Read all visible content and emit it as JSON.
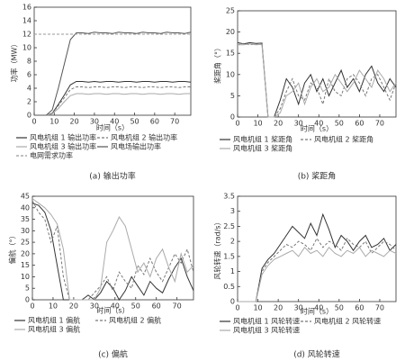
{
  "chart_data": [
    {
      "type": "line",
      "caption": "(a) 输出功率",
      "xlabel": "时间（s）",
      "ylabel": "功率（MW）",
      "x": [
        0,
        3,
        6,
        9,
        12,
        15,
        18,
        21,
        24,
        27,
        30,
        33,
        36,
        39,
        42,
        45,
        48,
        51,
        54,
        57,
        60,
        63,
        66,
        69,
        72,
        75,
        78
      ],
      "xlim": [
        0,
        78
      ],
      "xticks": [
        0,
        10,
        20,
        30,
        40,
        50,
        60,
        70
      ],
      "ylim": [
        0,
        16
      ],
      "yticks": [
        0,
        2,
        4,
        6,
        8,
        10,
        12,
        14,
        16
      ],
      "series": [
        {
          "name": "风电机组 1 输出功率",
          "color": "#333333",
          "dash": false,
          "values": [
            0,
            0,
            0,
            0.3,
            1.6,
            3.0,
            4.5,
            5.0,
            5.0,
            4.9,
            5.0,
            4.9,
            5.0,
            5.0,
            4.9,
            5.0,
            5.0,
            4.9,
            5.0,
            5.0,
            4.9,
            5.0,
            5.0,
            4.9,
            5.0,
            5.0,
            4.9
          ]
        },
        {
          "name": "风电机组 2 输出功率",
          "color": "#777777",
          "dash": true,
          "values": [
            0,
            0,
            0,
            0.3,
            1.4,
            2.6,
            3.8,
            4.2,
            4.2,
            4.1,
            4.2,
            4.2,
            4.1,
            4.2,
            4.2,
            4.1,
            4.2,
            4.2,
            4.1,
            4.2,
            4.2,
            4.1,
            4.2,
            4.2,
            4.1,
            4.2,
            4.2
          ]
        },
        {
          "name": "风电机组 3 输出功率",
          "color": "#aaaaaa",
          "dash": false,
          "values": [
            0,
            0,
            0,
            0.2,
            1.0,
            2.0,
            2.9,
            3.2,
            3.2,
            3.1,
            3.2,
            3.2,
            3.1,
            3.2,
            3.2,
            3.1,
            3.2,
            3.2,
            3.1,
            3.2,
            3.2,
            3.1,
            3.2,
            3.2,
            3.1,
            3.2,
            3.2
          ]
        },
        {
          "name": "风电场输出功率",
          "color": "#555555",
          "dash": false,
          "values": [
            0,
            0,
            0,
            0.8,
            4.0,
            7.6,
            11.2,
            12.2,
            12.2,
            12.1,
            12.3,
            12.2,
            12.2,
            12.1,
            12.3,
            12.2,
            12.2,
            12.1,
            12.3,
            12.2,
            12.2,
            12.1,
            12.3,
            12.2,
            12.2,
            12.1,
            12.3
          ]
        },
        {
          "name": "电网需求功率",
          "color": "#999999",
          "dash": true,
          "values": [
            12,
            12,
            12,
            12,
            12,
            12,
            12,
            12,
            12,
            12,
            12,
            12,
            12,
            12,
            12,
            12,
            12,
            12,
            12,
            12,
            12,
            12,
            12,
            12,
            12,
            12,
            12
          ]
        }
      ]
    },
    {
      "type": "line",
      "caption": "(b) 桨距角",
      "xlabel": "时间（s）",
      "ylabel": "桨距角（°）",
      "x": [
        0,
        3,
        6,
        9,
        12,
        15,
        18,
        21,
        24,
        27,
        30,
        33,
        36,
        39,
        42,
        45,
        48,
        51,
        54,
        57,
        60,
        63,
        66,
        69,
        72,
        75,
        78
      ],
      "xlim": [
        0,
        78
      ],
      "xticks": [
        0,
        10,
        20,
        30,
        40,
        50,
        60,
        70
      ],
      "ylim": [
        0,
        25
      ],
      "yticks": [
        0,
        5,
        10,
        15,
        20,
        25
      ],
      "series": [
        {
          "name": "风电机组 1 桨距角",
          "color": "#333333",
          "dash": false,
          "values": [
            17.5,
            17.2,
            17.5,
            17.3,
            17.4,
            0,
            0,
            4,
            9,
            7,
            3,
            8,
            10,
            6,
            9,
            5,
            8,
            11,
            7,
            9,
            6,
            10,
            12,
            8,
            6,
            9,
            7
          ]
        },
        {
          "name": "风电机组 2 桨距角",
          "color": "#777777",
          "dash": true,
          "values": [
            17,
            17.3,
            17,
            17.2,
            17,
            0,
            0,
            2,
            6,
            9,
            5,
            4,
            8,
            7,
            3,
            9,
            6,
            5,
            9,
            10,
            8,
            5,
            9,
            10,
            7,
            4,
            8
          ]
        },
        {
          "name": "风电机组 3 桨距角",
          "color": "#aaaaaa",
          "dash": false,
          "values": [
            17,
            17,
            17.2,
            17,
            17.1,
            0,
            0,
            1,
            5,
            6,
            8,
            3,
            7,
            9,
            6,
            7,
            10,
            8,
            6,
            8,
            11,
            9,
            7,
            11,
            9,
            6,
            8
          ]
        }
      ]
    },
    {
      "type": "line",
      "caption": "(c) 偏航",
      "xlabel": "时间（s）",
      "ylabel": "偏航（°）",
      "x": [
        0,
        3,
        6,
        9,
        12,
        15,
        18,
        21,
        24,
        27,
        30,
        33,
        36,
        39,
        42,
        45,
        48,
        51,
        54,
        57,
        60,
        63,
        66,
        69,
        72,
        75,
        78
      ],
      "xlim": [
        0,
        78
      ],
      "xticks": [
        0,
        10,
        20,
        30,
        40,
        50,
        60,
        70
      ],
      "ylim": [
        0,
        45
      ],
      "yticks": [
        0,
        5,
        10,
        15,
        20,
        25,
        30,
        35,
        40,
        45
      ],
      "series": [
        {
          "name": "风电机组 1 偏航",
          "color": "#333333",
          "dash": false,
          "values": [
            42,
            41,
            38,
            30,
            15,
            0,
            0,
            0,
            0,
            2,
            0,
            3,
            8,
            5,
            0,
            4,
            10,
            6,
            2,
            8,
            5,
            3,
            9,
            14,
            18,
            10,
            4
          ]
        },
        {
          "name": "风电机组 2 偏航",
          "color": "#777777",
          "dash": true,
          "values": [
            43,
            38,
            35,
            25,
            32,
            10,
            0,
            0,
            0,
            0,
            3,
            6,
            10,
            4,
            12,
            8,
            5,
            15,
            11,
            18,
            12,
            8,
            14,
            20,
            16,
            22,
            12
          ]
        },
        {
          "name": "风电机组 3 偏航",
          "color": "#aaaaaa",
          "dash": false,
          "values": [
            44,
            42,
            40,
            37,
            33,
            22,
            0,
            0,
            0,
            0,
            0,
            5,
            25,
            30,
            36,
            32,
            22,
            12,
            16,
            10,
            18,
            22,
            14,
            8,
            20,
            12,
            15
          ]
        }
      ]
    },
    {
      "type": "line",
      "caption": "(d) 风轮转速",
      "xlabel": "时间（s）",
      "ylabel": "风轮转速（rad/s）",
      "x": [
        0,
        3,
        6,
        9,
        12,
        15,
        18,
        21,
        24,
        27,
        30,
        33,
        36,
        39,
        42,
        45,
        48,
        51,
        54,
        57,
        60,
        63,
        66,
        69,
        72,
        75,
        78
      ],
      "xlim": [
        0,
        78
      ],
      "xticks": [
        0,
        10,
        20,
        30,
        40,
        50,
        60,
        70
      ],
      "ylim": [
        0,
        3.5
      ],
      "yticks": [
        0,
        0.5,
        1,
        1.5,
        2,
        2.5,
        3,
        3.5
      ],
      "series": [
        {
          "name": "风电机组 1 风轮转速",
          "color": "#333333",
          "dash": false,
          "values": [
            0,
            0,
            0,
            0,
            1.1,
            1.4,
            1.6,
            1.9,
            2.2,
            2.5,
            2.3,
            2.1,
            2.6,
            2.2,
            2.9,
            2.4,
            1.8,
            2.2,
            2.0,
            1.7,
            2.0,
            2.2,
            1.8,
            1.9,
            2.1,
            1.7,
            1.9
          ]
        },
        {
          "name": "风电机组 2 风轮转速",
          "color": "#777777",
          "dash": true,
          "values": [
            0,
            0,
            0,
            0,
            1.0,
            1.3,
            1.5,
            1.7,
            1.9,
            1.8,
            2.0,
            1.9,
            1.7,
            2.1,
            1.8,
            2.0,
            1.9,
            1.7,
            2.1,
            1.9,
            1.8,
            2.0,
            1.6,
            1.8,
            2.0,
            1.9,
            1.7
          ]
        },
        {
          "name": "风电机组 3 风轮转速",
          "color": "#aaaaaa",
          "dash": false,
          "values": [
            0,
            0,
            0,
            0,
            0.9,
            1.2,
            1.4,
            1.5,
            1.6,
            1.7,
            1.5,
            1.8,
            1.6,
            1.7,
            1.5,
            1.8,
            1.6,
            1.5,
            1.7,
            1.6,
            1.8,
            1.5,
            1.7,
            1.6,
            1.5,
            1.7,
            1.6
          ]
        }
      ]
    }
  ]
}
